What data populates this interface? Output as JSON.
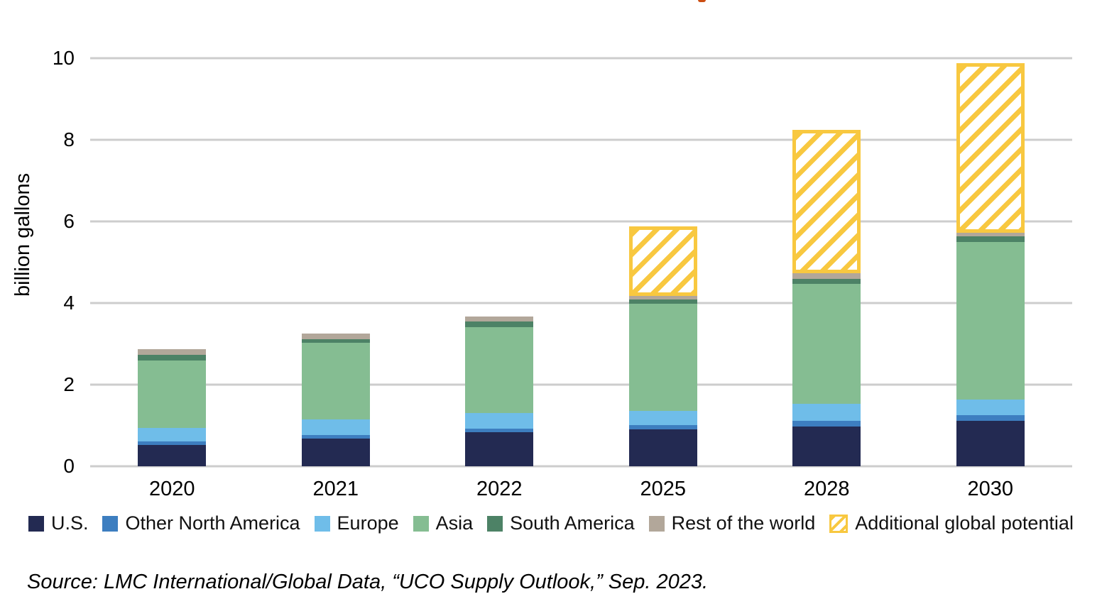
{
  "decor": {
    "cropped_title_fragment_color": "#cc4e12"
  },
  "chart_data": {
    "type": "bar",
    "stacked": true,
    "ylabel": "billion gallons",
    "xlabel": "",
    "ylim": [
      0,
      10
    ],
    "yticks": [
      0,
      2,
      4,
      6,
      8,
      10
    ],
    "grid": "horizontal",
    "gridline_color": "#cdcdcd",
    "legend_position": "bottom",
    "categories": [
      "2020",
      "2021",
      "2022",
      "2025",
      "2028",
      "2030"
    ],
    "series": [
      {
        "name": "U.S.",
        "color": "#232a52",
        "values": [
          0.53,
          0.67,
          0.83,
          0.9,
          0.98,
          1.11
        ]
      },
      {
        "name": "Other North America",
        "color": "#3d7ec0",
        "values": [
          0.08,
          0.09,
          0.1,
          0.11,
          0.13,
          0.14
        ]
      },
      {
        "name": "Europe",
        "color": "#6fbde9",
        "values": [
          0.33,
          0.38,
          0.37,
          0.35,
          0.42,
          0.38
        ]
      },
      {
        "name": "Asia",
        "color": "#85bd92",
        "values": [
          1.66,
          1.89,
          2.11,
          2.63,
          2.94,
          3.87
        ]
      },
      {
        "name": "South America",
        "color": "#4d8266",
        "values": [
          0.13,
          0.09,
          0.13,
          0.1,
          0.13,
          0.13
        ]
      },
      {
        "name": "Rest of the world",
        "color": "#b2a79a",
        "values": [
          0.14,
          0.14,
          0.13,
          0.08,
          0.13,
          0.09
        ]
      },
      {
        "name": "Additional global potential",
        "color": "#f8c840",
        "pattern": "diagonal-hatch",
        "values": [
          0,
          0,
          0,
          1.71,
          3.52,
          4.16
        ]
      }
    ],
    "bar_totals": [
      2.87,
      3.26,
      3.67,
      5.88,
      8.25,
      9.88
    ]
  },
  "source_note": "Source: LMC International/Global Data, “UCO Supply Outlook,” Sep. 2023."
}
